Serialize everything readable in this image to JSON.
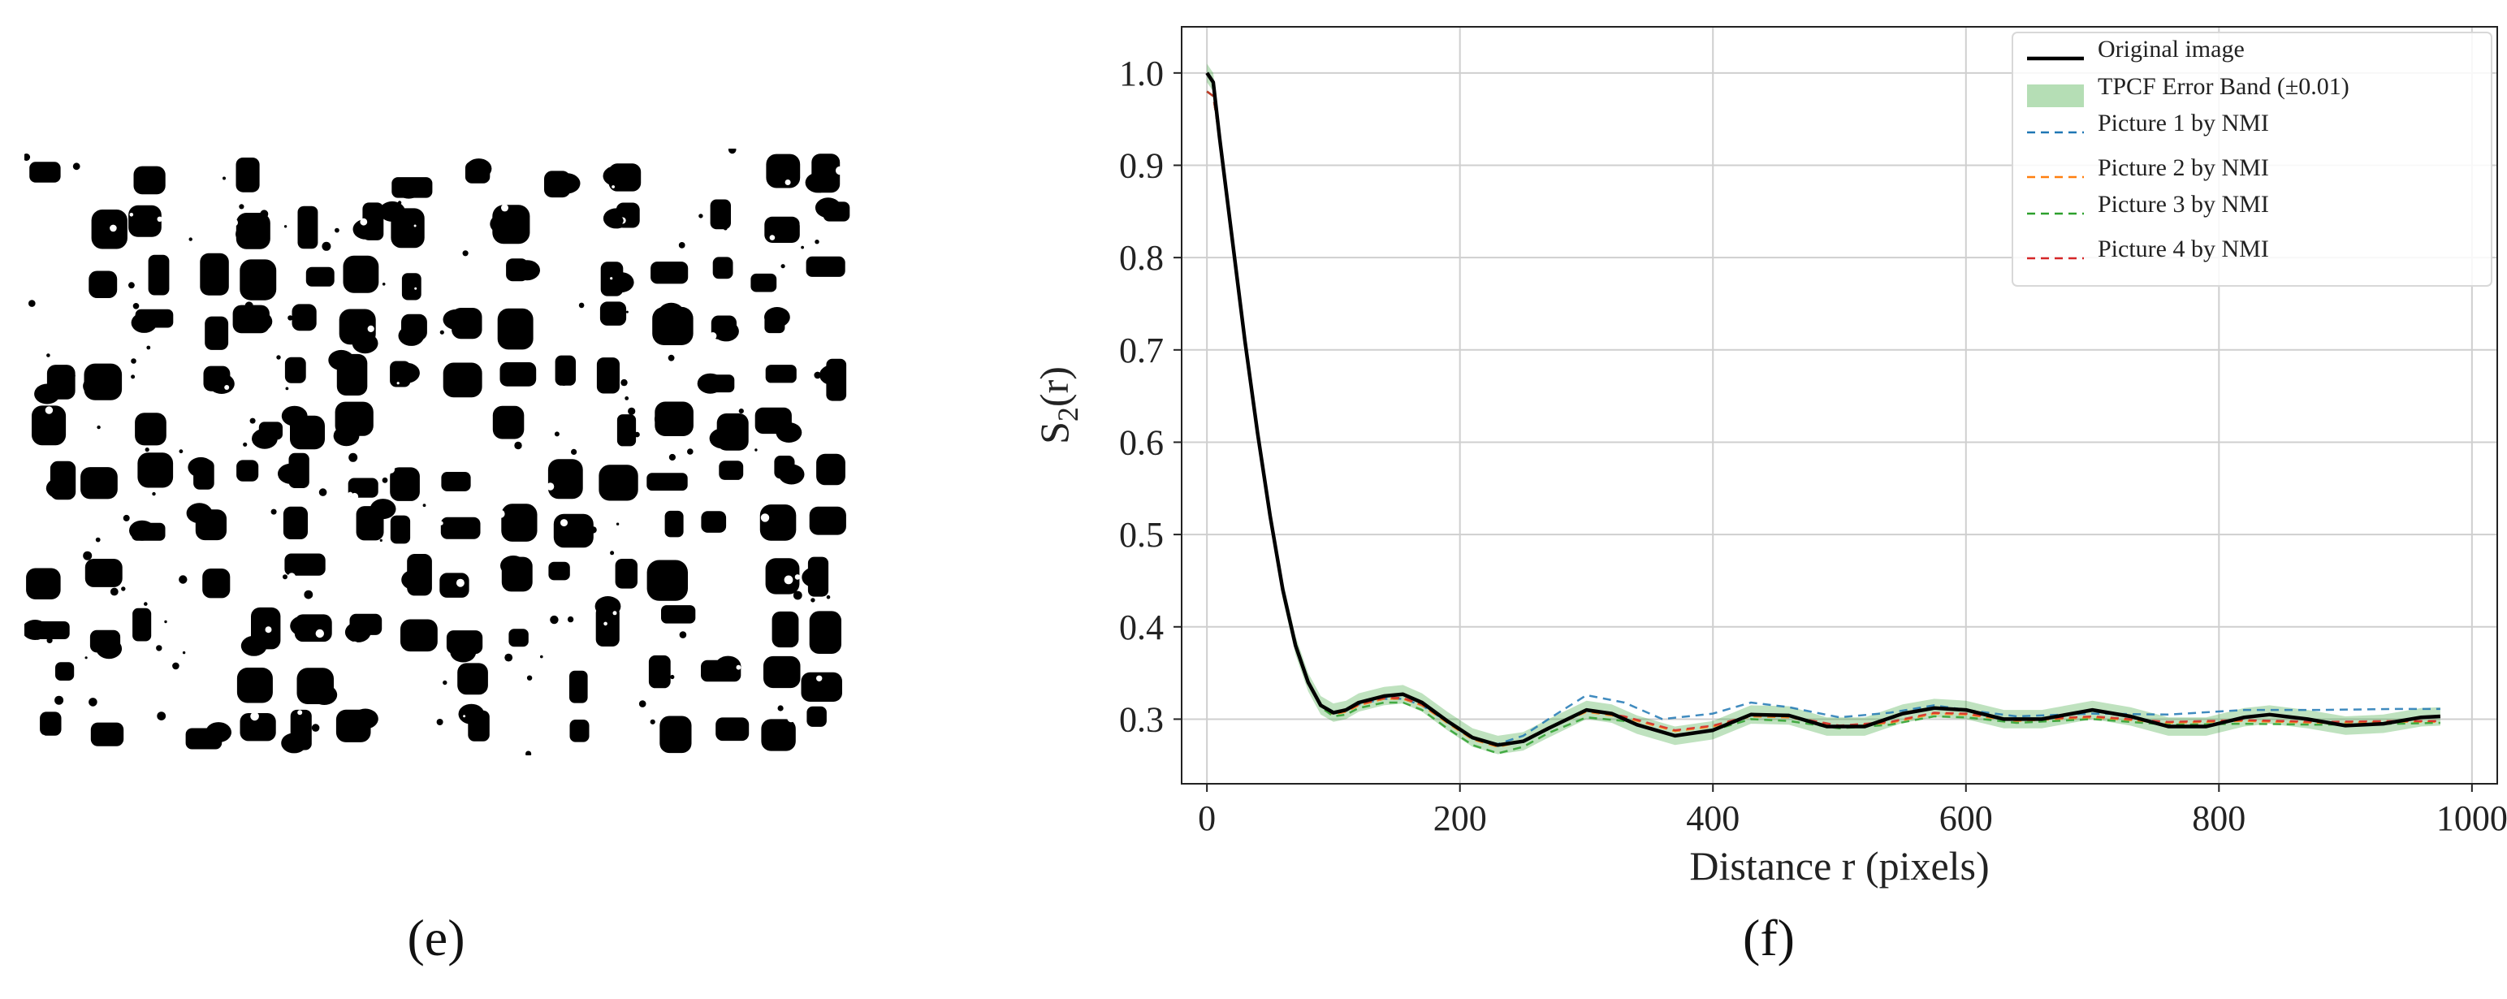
{
  "panels": {
    "e": {
      "label": "(e)",
      "image_kind": "binary-microstructure"
    },
    "f": {
      "label": "(f)"
    }
  },
  "chart_data": {
    "type": "line",
    "xlabel": "Distance  r (pixels)",
    "ylabel": "S",
    "ylabel_sub": "2",
    "ylabel_tail": "(r)",
    "xlim": [
      -20,
      1020
    ],
    "ylim": [
      0.23,
      1.05
    ],
    "xticks": [
      0,
      200,
      400,
      600,
      800,
      1000
    ],
    "yticks": [
      0.3,
      0.4,
      0.5,
      0.6,
      0.7,
      0.8,
      0.9,
      1.0
    ],
    "ytick_labels": [
      "0.3",
      "0.4",
      "0.5",
      "0.6",
      "0.7",
      "0.8",
      "0.9",
      "1.0"
    ],
    "grid": true,
    "legend_position": "top-right",
    "error_band": {
      "name": "TPCF Error Band (±0.01)",
      "half_width": 0.01,
      "color": "#2ca02c",
      "follows": "Original image"
    },
    "series": [
      {
        "name": "Original image",
        "style": "solid",
        "color": "#000000",
        "x": [
          0,
          5,
          10,
          20,
          30,
          40,
          50,
          60,
          70,
          80,
          90,
          100,
          110,
          120,
          140,
          155,
          170,
          190,
          210,
          230,
          250,
          270,
          300,
          320,
          340,
          370,
          400,
          430,
          460,
          490,
          520,
          550,
          575,
          600,
          630,
          660,
          700,
          730,
          760,
          790,
          820,
          840,
          870,
          900,
          930,
          960,
          975
        ],
        "y": [
          1.0,
          0.99,
          0.93,
          0.82,
          0.71,
          0.61,
          0.52,
          0.44,
          0.38,
          0.34,
          0.315,
          0.307,
          0.31,
          0.318,
          0.325,
          0.327,
          0.318,
          0.298,
          0.28,
          0.272,
          0.276,
          0.29,
          0.31,
          0.306,
          0.294,
          0.282,
          0.288,
          0.305,
          0.304,
          0.292,
          0.292,
          0.306,
          0.312,
          0.31,
          0.3,
          0.3,
          0.31,
          0.303,
          0.292,
          0.292,
          0.302,
          0.305,
          0.3,
          0.293,
          0.295,
          0.302,
          0.303
        ]
      },
      {
        "name": "Picture 1 by NMI",
        "style": "dashed",
        "color": "#1f77b4",
        "x": [
          0,
          5,
          10,
          20,
          30,
          40,
          50,
          60,
          70,
          80,
          90,
          100,
          110,
          120,
          140,
          155,
          170,
          190,
          210,
          230,
          250,
          270,
          300,
          330,
          360,
          400,
          430,
          460,
          500,
          540,
          575,
          600,
          640,
          700,
          760,
          820,
          880,
          940,
          975
        ],
        "y": [
          0.98,
          0.975,
          0.93,
          0.82,
          0.71,
          0.61,
          0.52,
          0.44,
          0.38,
          0.34,
          0.316,
          0.308,
          0.31,
          0.316,
          0.322,
          0.322,
          0.315,
          0.297,
          0.28,
          0.273,
          0.282,
          0.3,
          0.326,
          0.318,
          0.3,
          0.306,
          0.318,
          0.313,
          0.302,
          0.307,
          0.315,
          0.31,
          0.303,
          0.306,
          0.305,
          0.31,
          0.31,
          0.311,
          0.311
        ]
      },
      {
        "name": "Picture 2 by NMI",
        "style": "dashed",
        "color": "#ff7f0e",
        "x": [
          0,
          5,
          10,
          20,
          30,
          40,
          50,
          60,
          70,
          80,
          90,
          100,
          110,
          120,
          140,
          155,
          170,
          190,
          210,
          230,
          250,
          270,
          300,
          330,
          370,
          400,
          430,
          460,
          500,
          540,
          575,
          600,
          640,
          700,
          760,
          820,
          880,
          940,
          975
        ],
        "y": [
          0.98,
          0.975,
          0.93,
          0.82,
          0.71,
          0.61,
          0.52,
          0.44,
          0.38,
          0.34,
          0.315,
          0.305,
          0.308,
          0.315,
          0.322,
          0.322,
          0.315,
          0.296,
          0.278,
          0.27,
          0.276,
          0.29,
          0.308,
          0.302,
          0.287,
          0.292,
          0.303,
          0.302,
          0.292,
          0.296,
          0.306,
          0.305,
          0.298,
          0.302,
          0.296,
          0.298,
          0.296,
          0.297,
          0.297
        ]
      },
      {
        "name": "Picture 3 by NMI",
        "style": "dashed",
        "color": "#2ca02c",
        "x": [
          0,
          5,
          10,
          20,
          30,
          40,
          50,
          60,
          70,
          80,
          90,
          100,
          110,
          120,
          140,
          155,
          170,
          190,
          210,
          230,
          250,
          270,
          300,
          330,
          370,
          400,
          430,
          460,
          500,
          540,
          575,
          600,
          640,
          700,
          760,
          820,
          880,
          940,
          975
        ],
        "y": [
          0.98,
          0.975,
          0.93,
          0.82,
          0.71,
          0.61,
          0.52,
          0.44,
          0.38,
          0.34,
          0.313,
          0.303,
          0.305,
          0.312,
          0.318,
          0.318,
          0.31,
          0.29,
          0.272,
          0.263,
          0.27,
          0.285,
          0.302,
          0.298,
          0.282,
          0.288,
          0.3,
          0.298,
          0.29,
          0.294,
          0.303,
          0.302,
          0.296,
          0.3,
          0.294,
          0.295,
          0.294,
          0.295,
          0.296
        ]
      },
      {
        "name": "Picture 4 by NMI",
        "style": "dashed",
        "color": "#d62728",
        "x": [
          0,
          5,
          10,
          20,
          30,
          40,
          50,
          60,
          70,
          80,
          90,
          100,
          110,
          120,
          140,
          155,
          170,
          190,
          210,
          230,
          250,
          270,
          300,
          330,
          370,
          400,
          430,
          460,
          500,
          540,
          575,
          600,
          640,
          700,
          760,
          820,
          880,
          940,
          975
        ],
        "y": [
          0.98,
          0.975,
          0.93,
          0.82,
          0.71,
          0.61,
          0.52,
          0.44,
          0.38,
          0.34,
          0.316,
          0.306,
          0.309,
          0.316,
          0.323,
          0.323,
          0.316,
          0.297,
          0.279,
          0.271,
          0.277,
          0.291,
          0.309,
          0.303,
          0.288,
          0.293,
          0.304,
          0.303,
          0.293,
          0.297,
          0.307,
          0.306,
          0.299,
          0.303,
          0.297,
          0.299,
          0.297,
          0.298,
          0.298
        ]
      }
    ]
  }
}
